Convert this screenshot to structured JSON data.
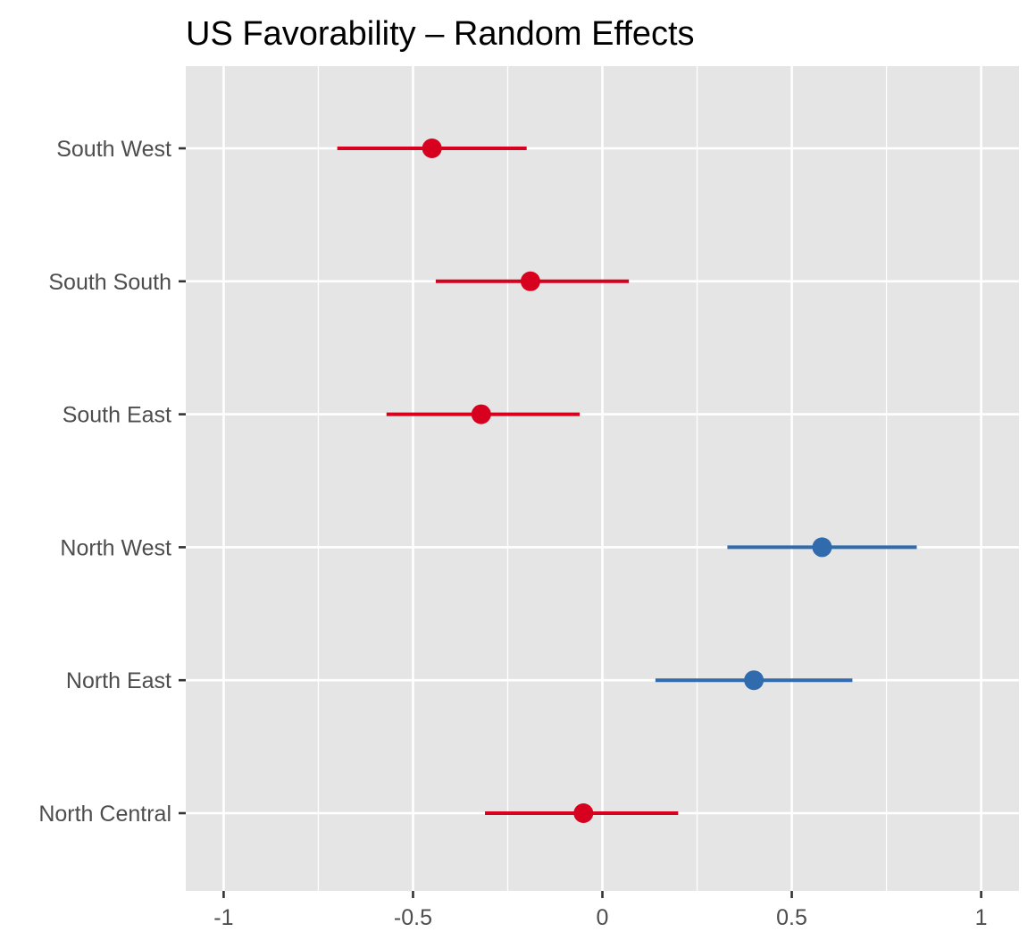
{
  "chart_data": {
    "type": "scatter",
    "title": "US Favorability – Random Effects",
    "xlabel": "",
    "ylabel": "",
    "xlim": [
      -1.1,
      1.1
    ],
    "x_ticks": [
      -1,
      -0.5,
      0,
      0.5,
      1
    ],
    "x_tick_labels": [
      "-1",
      "-0.5",
      "0",
      "0.5",
      "1"
    ],
    "grid": true,
    "legend": "none",
    "colors": {
      "negative": "#d7001f",
      "positive": "#2f6bad"
    },
    "categories": [
      "South West",
      "South South",
      "South East",
      "North West",
      "North East",
      "North Central"
    ],
    "points": [
      {
        "label": "South West",
        "estimate": -0.45,
        "lower": -0.7,
        "upper": -0.2
      },
      {
        "label": "South South",
        "estimate": -0.19,
        "lower": -0.44,
        "upper": 0.07
      },
      {
        "label": "South East",
        "estimate": -0.32,
        "lower": -0.57,
        "upper": -0.06
      },
      {
        "label": "North West",
        "estimate": 0.58,
        "lower": 0.33,
        "upper": 0.83
      },
      {
        "label": "North East",
        "estimate": 0.4,
        "lower": 0.14,
        "upper": 0.66
      },
      {
        "label": "North Central",
        "estimate": -0.05,
        "lower": -0.31,
        "upper": 0.2
      }
    ]
  }
}
